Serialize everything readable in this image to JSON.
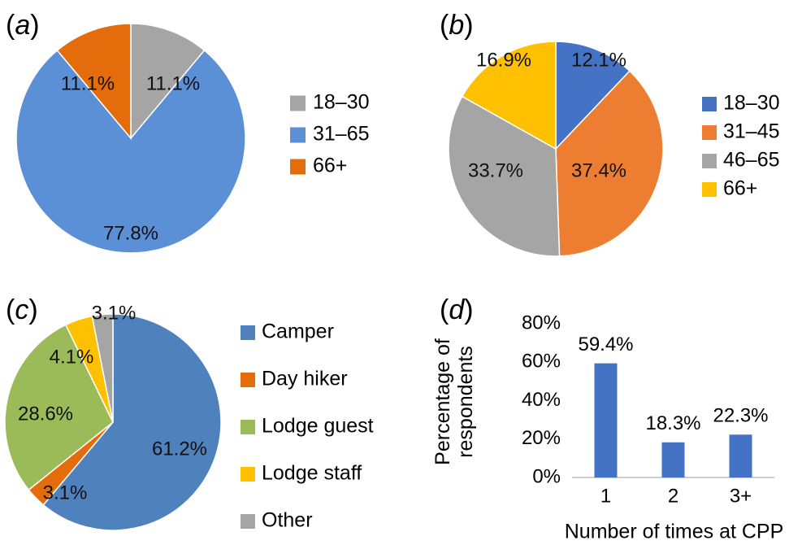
{
  "chart_data": [
    {
      "id": "a",
      "panel_label": "a",
      "type": "pie",
      "slices": [
        {
          "label": "18–30",
          "value": 11.1,
          "value_label": "11.1%",
          "color": "#A5A5A5"
        },
        {
          "label": "31–65",
          "value": 77.8,
          "value_label": "77.8%",
          "color": "#5B8FD6"
        },
        {
          "label": "66+",
          "value": 11.1,
          "value_label": "11.1%",
          "color": "#E46C0A"
        }
      ],
      "legend_position": "right"
    },
    {
      "id": "b",
      "panel_label": "b",
      "type": "pie",
      "slices": [
        {
          "label": "18–30",
          "value": 12.1,
          "value_label": "12.1%",
          "color": "#4472C4"
        },
        {
          "label": "31–45",
          "value": 37.4,
          "value_label": "37.4%",
          "color": "#ED7D31"
        },
        {
          "label": "46–65",
          "value": 33.7,
          "value_label": "33.7%",
          "color": "#A5A5A5"
        },
        {
          "label": "66+",
          "value": 16.9,
          "value_label": "16.9%",
          "color": "#FFC000"
        }
      ],
      "legend_position": "right"
    },
    {
      "id": "c",
      "panel_label": "c",
      "type": "pie",
      "slices": [
        {
          "label": "Camper",
          "value": 61.2,
          "value_label": "61.2%",
          "color": "#4F81BD"
        },
        {
          "label": "Day hiker",
          "value": 3.1,
          "value_label": "3.1%",
          "color": "#E46C0A"
        },
        {
          "label": "Lodge guest",
          "value": 28.6,
          "value_label": "28.6%",
          "color": "#9BBB59"
        },
        {
          "label": "Lodge staff",
          "value": 4.1,
          "value_label": "4.1%",
          "color": "#FFC000"
        },
        {
          "label": "Other",
          "value": 3.1,
          "value_label": "3.1%",
          "color": "#A5A5A5"
        }
      ],
      "legend_position": "right"
    },
    {
      "id": "d",
      "panel_label": "d",
      "type": "bar",
      "categories": [
        "1",
        "2",
        "3+"
      ],
      "values": [
        59.4,
        18.3,
        22.3
      ],
      "value_labels": [
        "59.4%",
        "18.3%",
        "22.3%"
      ],
      "xlabel": "Number of times at CPP",
      "ylabel_lines": [
        "Percentage of",
        "respondents"
      ],
      "ylim": [
        0,
        80
      ],
      "yticks": [
        "0%",
        "20%",
        "40%",
        "60%",
        "80%"
      ],
      "bar_color": "#4472C4",
      "grid": false
    }
  ]
}
